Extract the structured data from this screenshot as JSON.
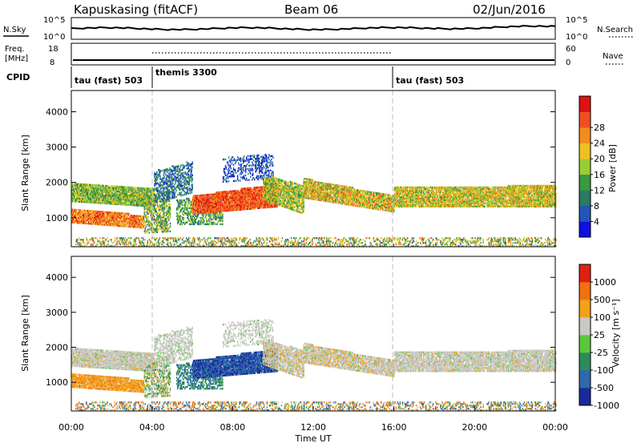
{
  "header": {
    "station": "Kapuskasing (fitACF)",
    "beam": "Beam 06",
    "date": "02/Jun/2016"
  },
  "nsky_panel": {
    "left_label": "N.Sky",
    "left_ticks": [
      "10^5",
      "10^0"
    ],
    "right_label": "N.Search",
    "right_ticks": [
      "10^5",
      "10^0"
    ]
  },
  "freq_panel": {
    "left_label_line1": "Freq.",
    "left_label_line2": "[MHz]",
    "left_ticks": [
      "18",
      "8"
    ],
    "right_label": "Nave",
    "right_ticks": [
      "60",
      "0"
    ]
  },
  "cpid_panel": {
    "label": "CPID",
    "segments": [
      {
        "name": "tau (fast) 503",
        "start": 0,
        "end": 4
      },
      {
        "name": "themis 3300",
        "start": 4,
        "end": 16
      },
      {
        "name": "tau (fast) 503",
        "start": 16,
        "end": 24
      }
    ]
  },
  "chart_data": [
    {
      "type": "heatmap",
      "quantity": "power",
      "ylabel": "Slant Range [km]",
      "ylim": [
        180,
        4600
      ],
      "yticks": [
        1000,
        2000,
        3000,
        4000
      ],
      "colorbar_label": "Power [dB]",
      "colorbar_ticks": [
        "4",
        "8",
        "12",
        "16",
        "20",
        "24",
        "28"
      ],
      "colors": [
        "#1010e0",
        "#2255bb",
        "#2a7a66",
        "#3a9a40",
        "#9acd32",
        "#f0c020",
        "#f28c1f",
        "#f05020",
        "#e01010"
      ]
    },
    {
      "type": "heatmap",
      "quantity": "velocity",
      "xlabel": "Time UT",
      "xticks": [
        "00:00",
        "04:00",
        "08:00",
        "12:00",
        "16:00",
        "20:00",
        "00:00"
      ],
      "ylabel": "Slant Range [km]",
      "ylim": [
        180,
        4600
      ],
      "yticks": [
        1000,
        2000,
        3000,
        4000
      ],
      "colorbar_label": "Velocity [m s⁻¹]",
      "colorbar_ticks": [
        "1000",
        "500",
        "100",
        "25",
        "-25",
        "-100",
        "-500",
        "-1000"
      ],
      "colors": [
        "#1a2a9a",
        "#2e6aaa",
        "#2f8a5a",
        "#5ac83a",
        "#c8c8c4",
        "#f2a11a",
        "#f07012",
        "#e02010"
      ]
    }
  ]
}
